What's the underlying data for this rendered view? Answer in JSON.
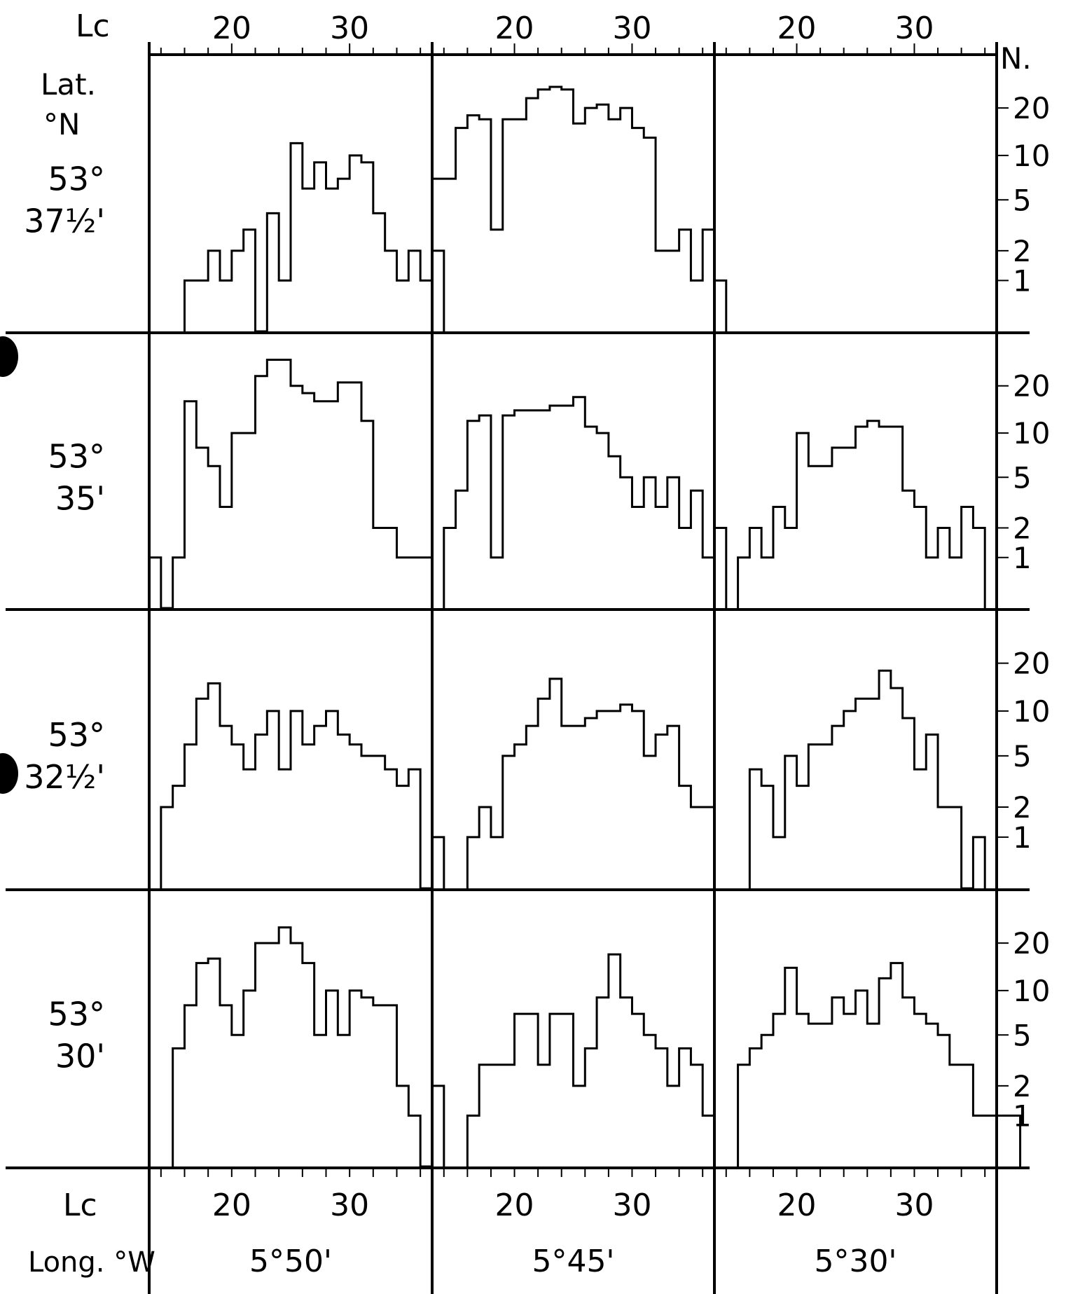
{
  "figure": {
    "x_axis_label": "Lc",
    "y_axis_label": "N.",
    "row_axis_label": "Lat.",
    "row_axis_unit": "°N",
    "col_axis_label": "Long. °W"
  },
  "chart_data": {
    "type": "bar",
    "x_ticks": [
      20,
      30
    ],
    "x_range": [
      13,
      37
    ],
    "y_scale": "log(N+1)",
    "y_ticks": [
      1,
      2,
      5,
      10,
      20
    ],
    "y_range": [
      0,
      40
    ],
    "columns": [
      "5°50'",
      "5°45'",
      "5°30'"
    ],
    "rows": [
      {
        "lat_deg": "53°",
        "lat_min": "37½'"
      },
      {
        "lat_deg": "53°",
        "lat_min": "35'"
      },
      {
        "lat_deg": "53°",
        "lat_min": "32½'"
      },
      {
        "lat_deg": "53°",
        "lat_min": "30'"
      }
    ],
    "panels": [
      {
        "row": 0,
        "col": 0,
        "start": 16,
        "values": [
          1,
          1,
          2,
          1,
          2,
          3,
          0,
          4,
          1,
          12,
          6,
          9,
          6,
          7,
          10,
          9,
          4,
          2,
          1,
          2,
          1,
          2
        ]
      },
      {
        "row": 0,
        "col": 1,
        "start": 13,
        "values": [
          7,
          7,
          15,
          18,
          17,
          3,
          17,
          17,
          23,
          26,
          27,
          26,
          16,
          20,
          21,
          17,
          20,
          15,
          13,
          2,
          2,
          3,
          1,
          3,
          1
        ]
      },
      {
        "row": 0,
        "col": 2,
        "start": 16,
        "values": []
      },
      {
        "row": 1,
        "col": 0,
        "start": 13,
        "values": [
          1,
          0,
          1,
          16,
          8,
          6,
          3,
          10,
          10,
          23,
          29,
          29,
          20,
          18,
          16,
          16,
          21,
          21,
          12,
          2,
          2,
          1,
          1,
          1
        ]
      },
      {
        "row": 1,
        "col": 1,
        "start": 14,
        "values": [
          2,
          4,
          12,
          13,
          1,
          13,
          14,
          14,
          14,
          15,
          15,
          17,
          11,
          10,
          7,
          5,
          3,
          5,
          3,
          5,
          2,
          4,
          1,
          2
        ]
      },
      {
        "row": 1,
        "col": 2,
        "start": 15,
        "values": [
          1,
          2,
          1,
          3,
          2,
          10,
          6,
          6,
          8,
          8,
          11,
          12,
          11,
          11,
          4,
          3,
          1,
          2,
          1,
          3,
          2
        ]
      },
      {
        "row": 2,
        "col": 0,
        "start": 14,
        "values": [
          2,
          3,
          6,
          12,
          15,
          8,
          6,
          4,
          7,
          10,
          4,
          10,
          6,
          8,
          10,
          7,
          6,
          5,
          5,
          4,
          3,
          4,
          0,
          1
        ]
      },
      {
        "row": 2,
        "col": 1,
        "start": 16,
        "values": [
          1,
          2,
          1,
          5,
          6,
          8,
          12,
          16,
          8,
          8,
          9,
          10,
          10,
          11,
          10,
          5,
          7,
          8,
          3,
          2,
          2
        ]
      },
      {
        "row": 2,
        "col": 2,
        "start": 16,
        "values": [
          4,
          3,
          1,
          5,
          3,
          6,
          6,
          8,
          10,
          12,
          12,
          18,
          14,
          9,
          4,
          7,
          2,
          2,
          0,
          1
        ]
      },
      {
        "row": 3,
        "col": 0,
        "start": 15,
        "values": [
          4,
          8,
          15,
          16,
          8,
          5,
          10,
          20,
          20,
          25,
          20,
          15,
          5,
          10,
          5,
          10,
          9,
          8,
          8,
          2,
          1,
          0,
          2
        ]
      },
      {
        "row": 3,
        "col": 1,
        "start": 16,
        "values": [
          1,
          3,
          3,
          3,
          7,
          7,
          3,
          7,
          7,
          2,
          4,
          9,
          17,
          9,
          7,
          5,
          4,
          2,
          4,
          3,
          1
        ]
      },
      {
        "row": 3,
        "col": 2,
        "start": 15,
        "values": [
          3,
          4,
          5,
          7,
          14,
          7,
          6,
          6,
          9,
          7,
          10,
          6,
          12,
          15,
          9,
          7,
          6,
          5,
          3,
          3,
          1,
          1,
          1,
          1
        ]
      }
    ]
  }
}
